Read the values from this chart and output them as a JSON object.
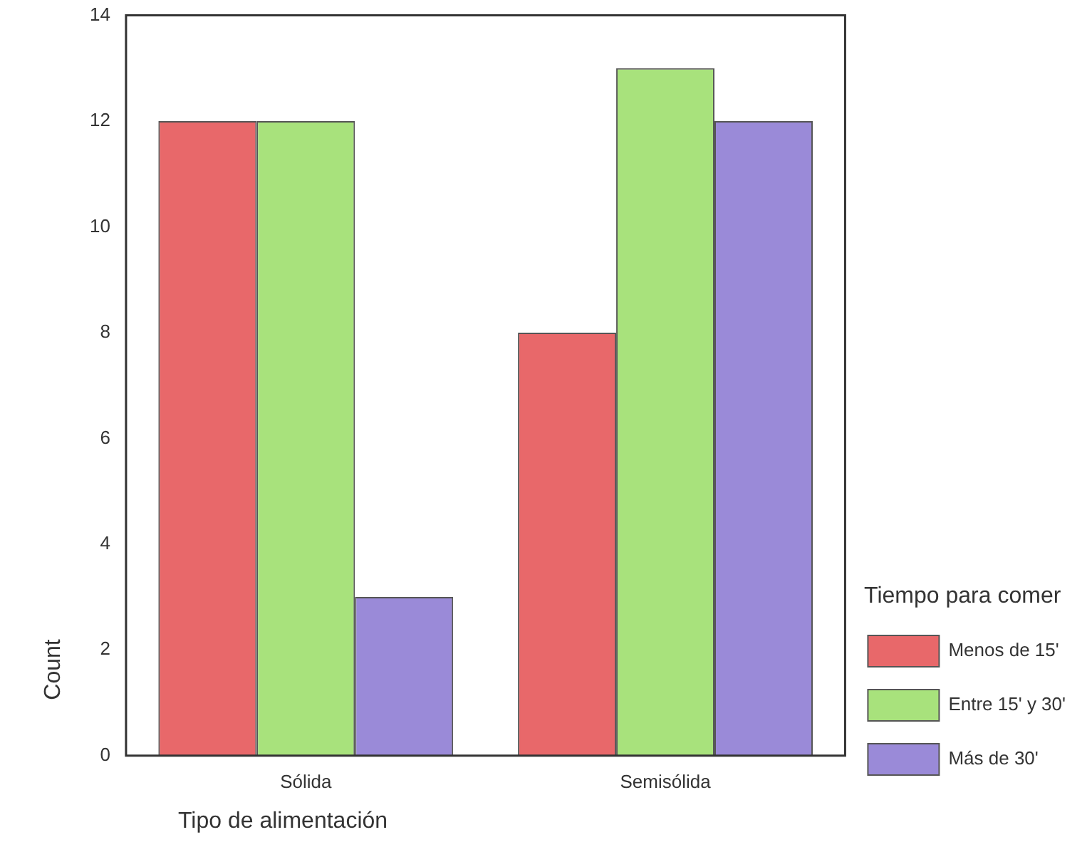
{
  "chart_data": {
    "type": "bar",
    "xlabel": "Tipo de alimentación",
    "ylabel": "Count",
    "legend_title": "Tiempo para comer",
    "categories": [
      "Sólida",
      "Semisólida"
    ],
    "series": [
      {
        "name": "Menos de 15'",
        "color": "#e8686a",
        "values": [
          12,
          8
        ]
      },
      {
        "name": "Entre 15' y 30'",
        "color": "#a8e27c",
        "values": [
          12,
          13
        ]
      },
      {
        "name": "Más de 30'",
        "color": "#9a8ad8",
        "values": [
          3,
          12
        ]
      }
    ],
    "ylim": [
      0,
      14
    ],
    "yticks": [
      0,
      2,
      4,
      6,
      8,
      10,
      12,
      14
    ],
    "grid": false,
    "legend": "right"
  }
}
